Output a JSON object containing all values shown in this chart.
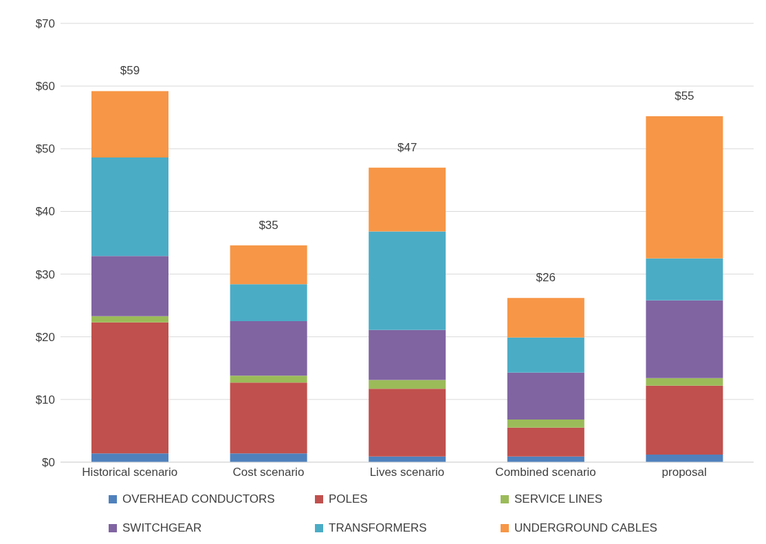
{
  "chart_data": {
    "type": "bar",
    "stacked": true,
    "categories": [
      "Historical scenario",
      "Cost scenario",
      "Lives scenario",
      "Combined scenario",
      "proposal"
    ],
    "series": [
      {
        "name": "OVERHEAD CONDUCTORS",
        "color": "#4f81bd",
        "values": [
          1.4,
          1.4,
          0.9,
          0.9,
          1.2
        ]
      },
      {
        "name": "POLES",
        "color": "#c0504d",
        "values": [
          20.9,
          11.3,
          10.8,
          4.6,
          11.0
        ]
      },
      {
        "name": "SERVICE LINES",
        "color": "#9bbb59",
        "values": [
          1.0,
          1.1,
          1.4,
          1.3,
          1.2
        ]
      },
      {
        "name": "SWITCHGEAR",
        "color": "#8064a2",
        "values": [
          9.6,
          8.7,
          8.0,
          7.5,
          12.4
        ]
      },
      {
        "name": "TRANSFORMERS",
        "color": "#4bacc6",
        "values": [
          15.7,
          5.9,
          15.7,
          5.6,
          6.7
        ]
      },
      {
        "name": "UNDERGROUND CABLES",
        "color": "#f79646",
        "values": [
          10.6,
          6.2,
          10.2,
          6.3,
          22.7
        ]
      }
    ],
    "totals": [
      "$59",
      "$35",
      "$47",
      "$26",
      "$55"
    ],
    "ylim": [
      0,
      70
    ],
    "yticks": [
      {
        "value": 0,
        "label": "$0"
      },
      {
        "value": 10,
        "label": "$10"
      },
      {
        "value": 20,
        "label": "$20"
      },
      {
        "value": 30,
        "label": "$30"
      },
      {
        "value": 40,
        "label": "$40"
      },
      {
        "value": 50,
        "label": "$50"
      },
      {
        "value": 60,
        "label": "$60"
      },
      {
        "value": 70,
        "label": "$70"
      }
    ],
    "grid": "y",
    "legend": "bottom"
  }
}
